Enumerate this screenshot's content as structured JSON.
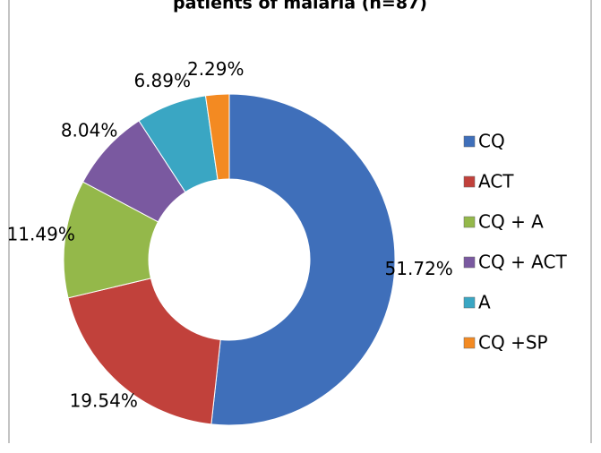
{
  "chart_data": {
    "type": "donut",
    "title": "patients of malaria (n=87)",
    "categories": [
      "CQ",
      "ACT",
      "CQ + A",
      "CQ + ACT",
      "A",
      "CQ +SP"
    ],
    "values": [
      51.72,
      19.54,
      11.49,
      8.04,
      6.89,
      2.29
    ],
    "value_labels": [
      "51.72%",
      "19.54%",
      "11.49%",
      "8.04%",
      "6.89%",
      "2.29%"
    ],
    "colors": [
      "#3f6fba",
      "#c1413b",
      "#94b84a",
      "#7a59a0",
      "#3aa6c3",
      "#f38a22"
    ],
    "legend": "right"
  }
}
